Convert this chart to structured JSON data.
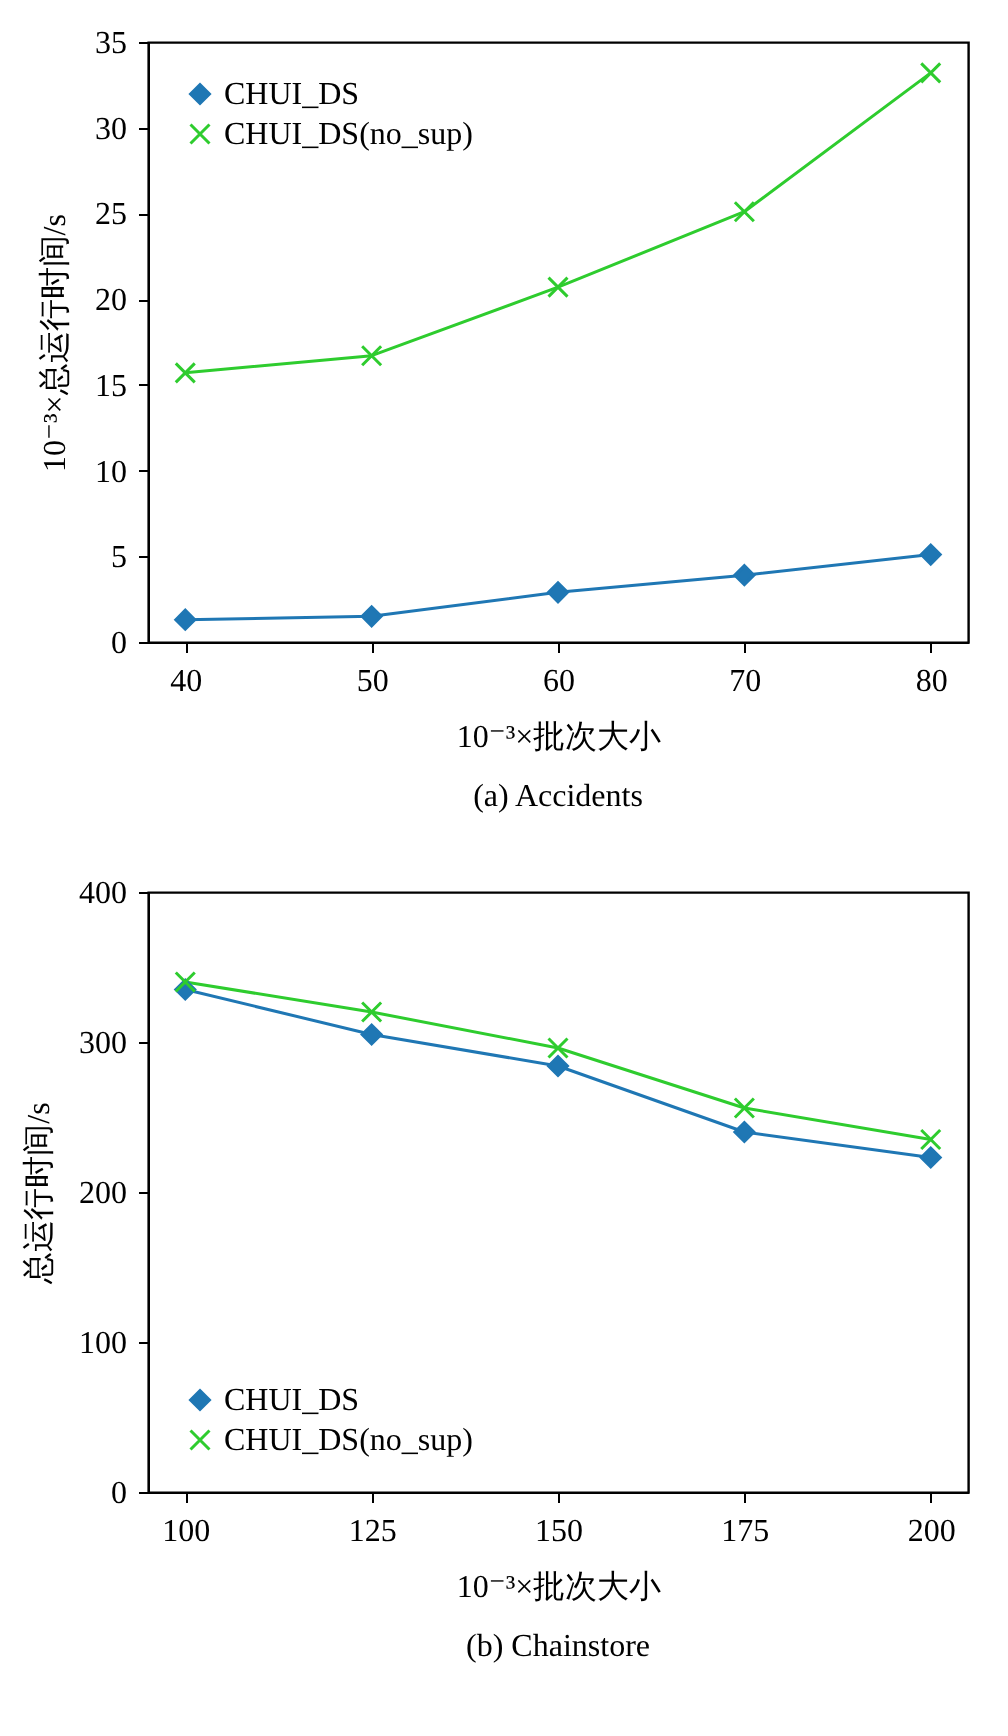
{
  "chart_data": [
    {
      "type": "line",
      "title": "(a)  Accidents",
      "xlabel": "10⁻³×批次大小",
      "ylabel": "10⁻³×总运行时间/s",
      "x": [
        40,
        50,
        60,
        70,
        80
      ],
      "xlim": [
        38,
        82
      ],
      "xticks": [
        40,
        50,
        60,
        70,
        80
      ],
      "ylim": [
        0,
        35
      ],
      "yticks": [
        0,
        5,
        10,
        15,
        20,
        25,
        30,
        35
      ],
      "grid": false,
      "legend": "top left",
      "series": [
        {
          "name": "CHUI_DS",
          "color": "#1f77b4",
          "marker": "diamond",
          "values": [
            1.3,
            1.5,
            2.9,
            3.9,
            5.1
          ]
        },
        {
          "name": "CHUI_DS(no_sup)",
          "color": "#2ecc2e",
          "marker": "cross",
          "values": [
            15.7,
            16.7,
            20.7,
            25.1,
            33.2
          ]
        }
      ]
    },
    {
      "type": "line",
      "title": "(b)  Chainstore",
      "xlabel": "10⁻³×批次大小",
      "ylabel": "总运行时间/s",
      "x": [
        100,
        125,
        150,
        175,
        200
      ],
      "xlim": [
        95,
        205
      ],
      "xticks": [
        100,
        125,
        150,
        175,
        200
      ],
      "ylim": [
        0,
        400
      ],
      "yticks": [
        0,
        100,
        200,
        300,
        400
      ],
      "grid": false,
      "legend": "bottom left",
      "series": [
        {
          "name": "CHUI_DS",
          "color": "#1f77b4",
          "marker": "diamond",
          "values": [
            335,
            305,
            284,
            240,
            223
          ]
        },
        {
          "name": "CHUI_DS(no_sup)",
          "color": "#2ecc2e",
          "marker": "cross",
          "values": [
            340,
            320,
            296,
            256,
            235
          ]
        }
      ]
    }
  ]
}
